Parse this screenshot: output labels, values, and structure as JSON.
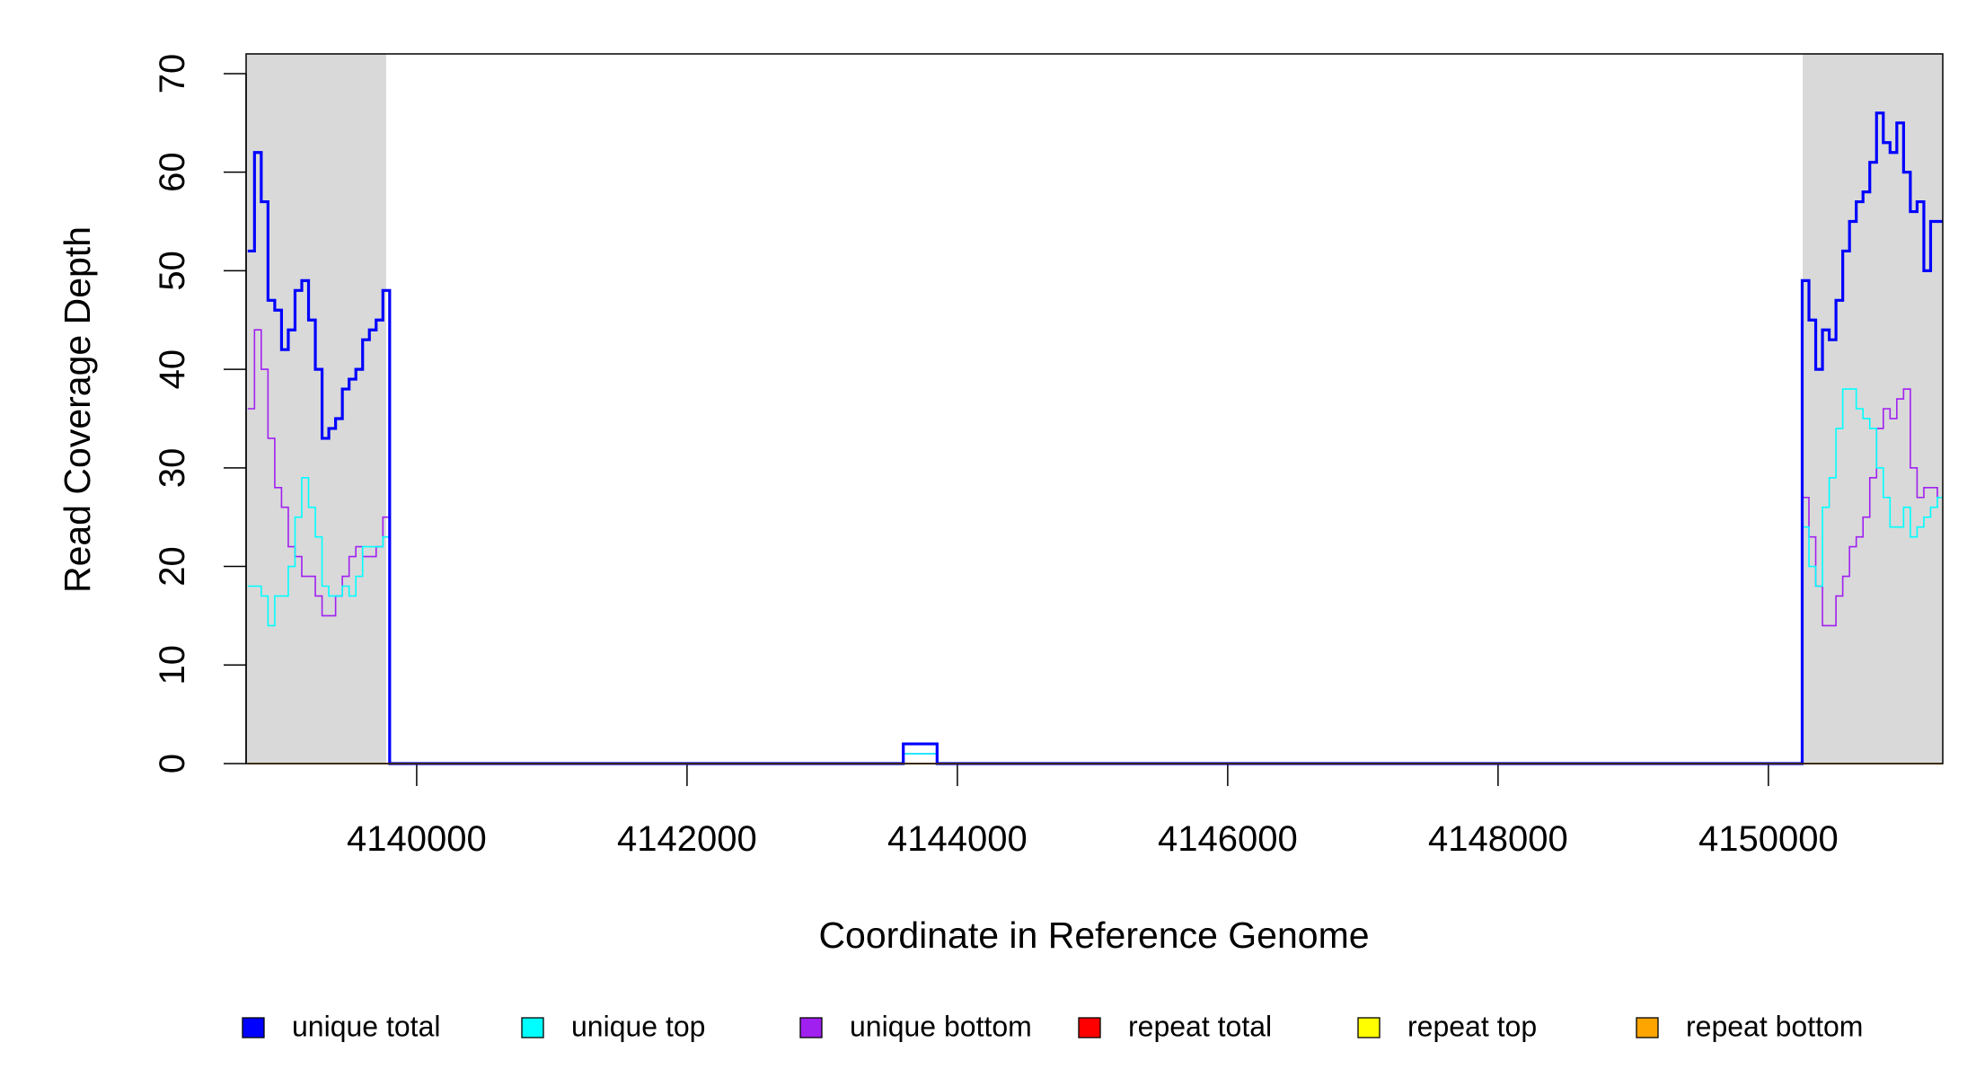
{
  "chart_data": {
    "type": "line",
    "step": true,
    "xlabel": "Coordinate in Reference Genome",
    "ylabel": "Read Coverage Depth",
    "xlim": [
      4138738,
      4151290
    ],
    "ylim": [
      0,
      72
    ],
    "xticks": [
      4140000,
      4142000,
      4144000,
      4146000,
      4148000,
      4150000
    ],
    "yticks": [
      0,
      10,
      20,
      30,
      40,
      50,
      60,
      70
    ],
    "regions": [
      [
        4138738,
        4139774
      ],
      [
        4150254,
        4151290
      ]
    ],
    "region_color": "#d9d9d9",
    "x": [
      4138750,
      4138800,
      4138850,
      4138900,
      4138950,
      4139000,
      4139050,
      4139100,
      4139150,
      4139200,
      4139250,
      4139300,
      4139350,
      4139400,
      4139450,
      4139500,
      4139550,
      4139600,
      4139650,
      4139700,
      4139750,
      4139800,
      4143600,
      4143850,
      4150250,
      4150300,
      4150350,
      4150400,
      4150450,
      4150500,
      4150550,
      4150600,
      4150650,
      4150700,
      4150750,
      4150800,
      4150850,
      4150900,
      4150950,
      4151000,
      4151050,
      4151100,
      4151150,
      4151200,
      4151250
    ],
    "series": [
      {
        "name": "unique total",
        "color": "#0000ff",
        "values": [
          52,
          62,
          57,
          47,
          46,
          42,
          44,
          48,
          49,
          45,
          40,
          33,
          34,
          35,
          38,
          39,
          40,
          43,
          44,
          45,
          48,
          0,
          2,
          0,
          49,
          45,
          40,
          44,
          43,
          47,
          52,
          55,
          57,
          58,
          61,
          66,
          63,
          62,
          65,
          60,
          56,
          57,
          50,
          55,
          55
        ]
      },
      {
        "name": "unique top",
        "color": "#00ffff",
        "values": [
          18,
          18,
          17,
          14,
          17,
          17,
          20,
          25,
          29,
          26,
          23,
          18,
          17,
          17,
          18,
          17,
          19,
          22,
          22,
          22,
          23,
          0,
          1,
          0,
          24,
          20,
          18,
          26,
          29,
          34,
          38,
          38,
          36,
          35,
          34,
          30,
          27,
          24,
          24,
          26,
          23,
          24,
          25,
          26,
          27
        ]
      },
      {
        "name": "unique bottom",
        "color": "#a020f0",
        "values": [
          36,
          44,
          40,
          33,
          28,
          26,
          22,
          21,
          19,
          19,
          17,
          15,
          15,
          17,
          19,
          21,
          22,
          21,
          21,
          22,
          25,
          0,
          1,
          0,
          27,
          23,
          18,
          14,
          14,
          17,
          19,
          22,
          23,
          25,
          29,
          34,
          36,
          35,
          37,
          38,
          30,
          27,
          28,
          28,
          27
        ]
      },
      {
        "name": "repeat total",
        "color": "#ff0000",
        "values": [
          0,
          0,
          0,
          0,
          0,
          0,
          0,
          0,
          0,
          0,
          0,
          0,
          0,
          0,
          0,
          0,
          0,
          0,
          0,
          0,
          0,
          0,
          0,
          0,
          0,
          0,
          0,
          0,
          0,
          0,
          0,
          0,
          0,
          0,
          0,
          0,
          0,
          0,
          0,
          0,
          0,
          0,
          0,
          0,
          0
        ]
      },
      {
        "name": "repeat top",
        "color": "#ffff00",
        "values": [
          0,
          0,
          0,
          0,
          0,
          0,
          0,
          0,
          0,
          0,
          0,
          0,
          0,
          0,
          0,
          0,
          0,
          0,
          0,
          0,
          0,
          0,
          0,
          0,
          0,
          0,
          0,
          0,
          0,
          0,
          0,
          0,
          0,
          0,
          0,
          0,
          0,
          0,
          0,
          0,
          0,
          0,
          0,
          0,
          0
        ]
      },
      {
        "name": "repeat bottom",
        "color": "#ffa500",
        "values": [
          0,
          0,
          0,
          0,
          0,
          0,
          0,
          0,
          0,
          0,
          0,
          0,
          0,
          0,
          0,
          0,
          0,
          0,
          0,
          0,
          0,
          0,
          0,
          0,
          0,
          0,
          0,
          0,
          0,
          0,
          0,
          0,
          0,
          0,
          0,
          0,
          0,
          0,
          0,
          0,
          0,
          0,
          0,
          0,
          0
        ]
      }
    ]
  }
}
